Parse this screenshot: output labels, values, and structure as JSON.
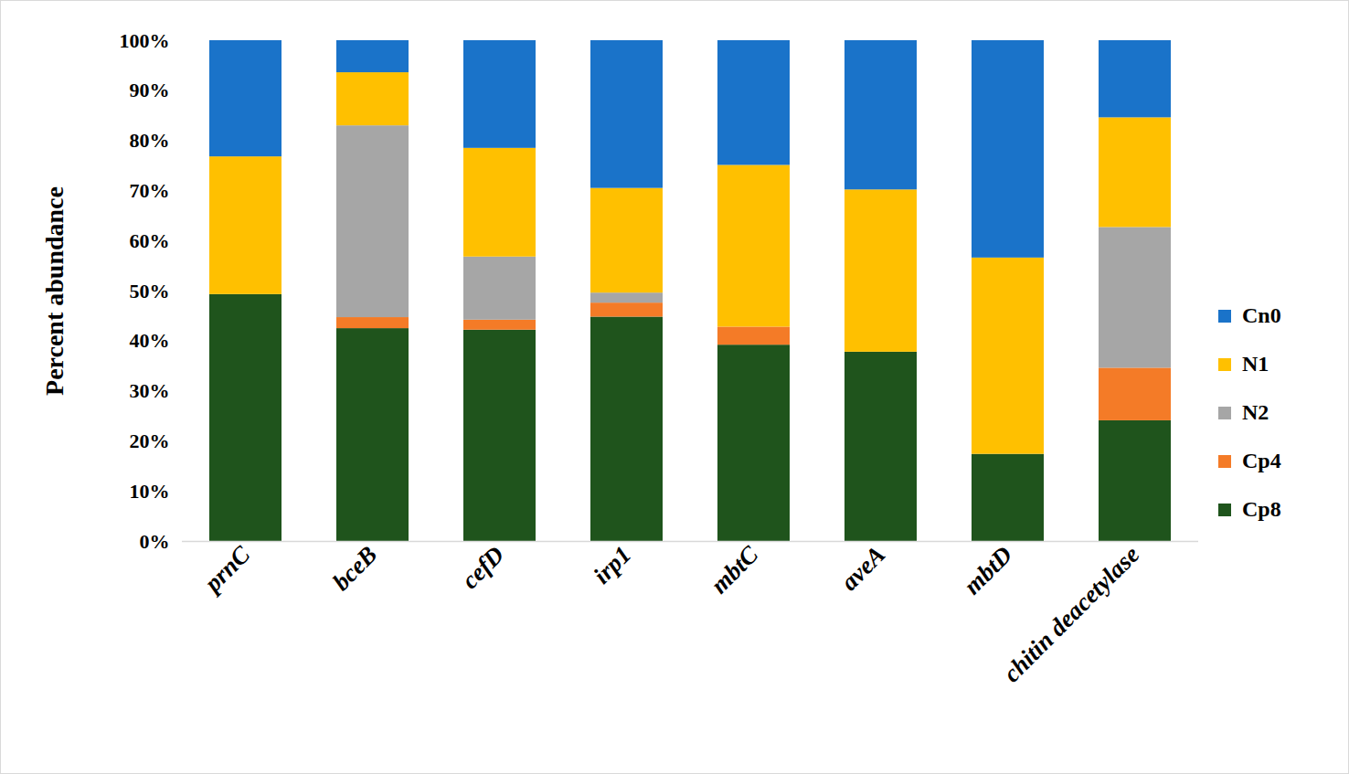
{
  "chart_data": {
    "type": "bar",
    "stacked": true,
    "grid": false,
    "legend": "right",
    "y_label": "Percent abundance",
    "categories": [
      "prnC",
      "bceB",
      "cefD",
      "irp1",
      "mbtC",
      "aveA",
      "mbtD",
      "chitin deacetylase"
    ],
    "series": [
      {
        "name": "Cp8",
        "color": "#1f541c",
        "values": [
          49.3,
          42.5,
          42.2,
          44.8,
          39.2,
          37.8,
          17.4,
          24.1
        ]
      },
      {
        "name": "Cp4",
        "color": "#f47b27",
        "values": [
          0,
          2.2,
          2.0,
          2.8,
          3.6,
          0,
          0,
          10.5
        ]
      },
      {
        "name": "N2",
        "color": "#a6a6a6",
        "values": [
          0,
          38.3,
          12.6,
          2.0,
          0,
          0,
          0,
          28.1
        ]
      },
      {
        "name": "N1",
        "color": "#ffc000",
        "values": [
          27.5,
          10.6,
          21.7,
          20.9,
          32.3,
          32.4,
          39.2,
          21.9
        ]
      },
      {
        "name": "Cn0",
        "color": "#1a73c9",
        "values": [
          23.2,
          6.4,
          21.5,
          29.5,
          24.9,
          29.8,
          43.4,
          15.4
        ]
      }
    ],
    "ylim": [
      0,
      100
    ],
    "yticks": [
      {
        "value": 0,
        "label": "0%"
      },
      {
        "value": 10,
        "label": "10%"
      },
      {
        "value": 20,
        "label": "20%"
      },
      {
        "value": 30,
        "label": "30%"
      },
      {
        "value": 40,
        "label": "40%"
      },
      {
        "value": 50,
        "label": "50%"
      },
      {
        "value": 60,
        "label": "60%"
      },
      {
        "value": 70,
        "label": "70%"
      },
      {
        "value": 80,
        "label": "80%"
      },
      {
        "value": 90,
        "label": "90%"
      },
      {
        "value": 100,
        "label": "100%"
      }
    ]
  }
}
